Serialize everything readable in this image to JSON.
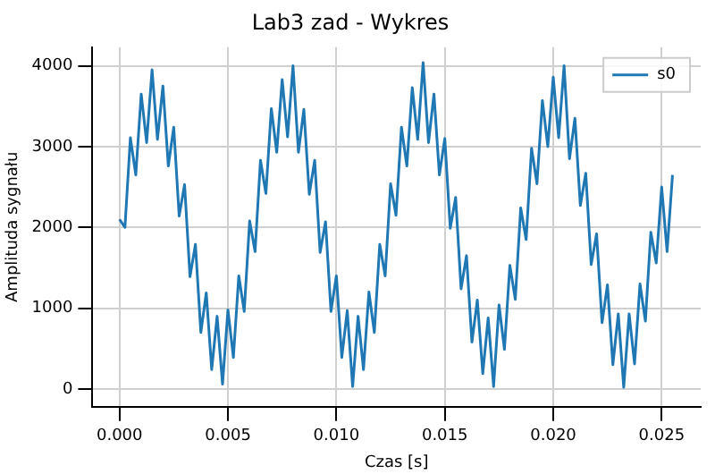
{
  "chart_data": {
    "type": "line",
    "title": "Lab3 zad - Wykres",
    "xlabel": "Czas [s]",
    "ylabel": "Amplituda sygnału",
    "x": [
      0,
      0.00025,
      0.0005,
      0.00075,
      0.001,
      0.00125,
      0.0015,
      0.00175,
      0.002,
      0.00225,
      0.0025,
      0.00275,
      0.003,
      0.00325,
      0.0035,
      0.00375,
      0.004,
      0.00425,
      0.0045,
      0.00475,
      0.005,
      0.00525,
      0.0055,
      0.00575,
      0.006,
      0.00625,
      0.0065,
      0.00675,
      0.007,
      0.00725,
      0.0075,
      0.00775,
      0.008,
      0.00825,
      0.0085,
      0.00875,
      0.009,
      0.00925,
      0.0095,
      0.00975,
      0.01,
      0.01025,
      0.0105,
      0.01075,
      0.011,
      0.01125,
      0.0115,
      0.01175,
      0.012,
      0.01225,
      0.0125,
      0.01275,
      0.013,
      0.01325,
      0.0135,
      0.01375,
      0.014,
      0.01425,
      0.0145,
      0.01475,
      0.015,
      0.01525,
      0.0155,
      0.01575,
      0.016,
      0.01625,
      0.0165,
      0.01675,
      0.017,
      0.01725,
      0.0175,
      0.01775,
      0.018,
      0.01825,
      0.0185,
      0.01875,
      0.019,
      0.01925,
      0.0195,
      0.01975,
      0.02,
      0.02025,
      0.0205,
      0.02075,
      0.021,
      0.02125,
      0.0215,
      0.02175,
      0.022,
      0.02225,
      0.0225,
      0.02275,
      0.023,
      0.02325,
      0.0235,
      0.02375,
      0.024,
      0.02425,
      0.0245,
      0.02475,
      0.025,
      0.02525,
      0.0255
    ],
    "series": [
      {
        "name": "s0",
        "color": "#1f77b4",
        "values": [
          2100,
          2000,
          3110,
          2650,
          3650,
          3050,
          3950,
          3090,
          3750,
          2760,
          3240,
          2140,
          2530,
          1390,
          1790,
          700,
          1190,
          240,
          900,
          60,
          980,
          390,
          1400,
          960,
          2080,
          1700,
          2830,
          2420,
          3470,
          2930,
          3830,
          3120,
          4000,
          2930,
          3460,
          2410,
          2830,
          1690,
          2070,
          960,
          1400,
          390,
          970,
          30,
          900,
          240,
          1200,
          700,
          1790,
          1400,
          2540,
          2150,
          3240,
          2760,
          3730,
          3090,
          4040,
          3050,
          3650,
          2650,
          3100,
          1990,
          2370,
          1240,
          1650,
          580,
          1100,
          190,
          880,
          30,
          1040,
          490,
          1530,
          1110,
          2240,
          1850,
          2980,
          2540,
          3570,
          3000,
          3860,
          3110,
          4000,
          2850,
          3350,
          2270,
          2670,
          1540,
          1920,
          820,
          1290,
          300,
          930,
          20,
          930,
          310,
          1300,
          840,
          1940,
          1560,
          2500,
          1700,
          2650
        ]
      }
    ],
    "xlim": [
      -0.00125,
      0.0268
    ],
    "ylim": [
      -220,
      4230
    ],
    "xticks": [
      {
        "value": 0,
        "label": "0.000"
      },
      {
        "value": 0.005,
        "label": "0.005"
      },
      {
        "value": 0.01,
        "label": "0.010"
      },
      {
        "value": 0.015,
        "label": "0.015"
      },
      {
        "value": 0.02,
        "label": "0.020"
      },
      {
        "value": 0.025,
        "label": "0.025"
      }
    ],
    "yticks": [
      0,
      1000,
      2000,
      3000,
      4000
    ],
    "grid": true,
    "legend": "top right",
    "marker": "none",
    "line_style": "solid"
  }
}
